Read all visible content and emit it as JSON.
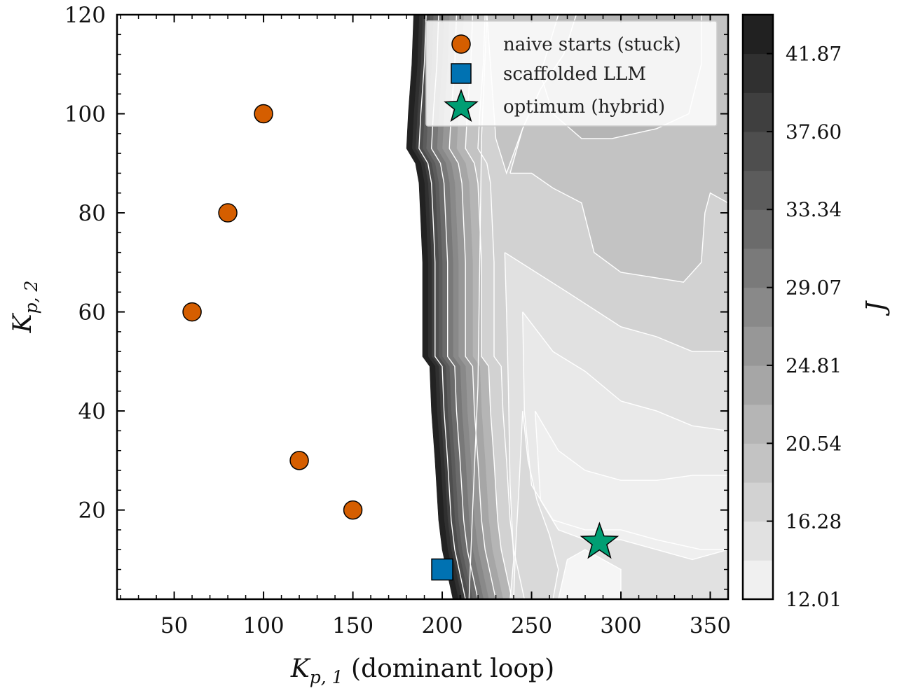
{
  "chart_data": {
    "type": "contour",
    "xlabel": {
      "symbol": "K",
      "sub": "p, 1",
      "suffix": " (dominant loop)"
    },
    "ylabel": {
      "symbol": "K",
      "sub": "p, 2"
    },
    "colorbar_label": "J",
    "xlim": [
      18,
      360
    ],
    "ylim": [
      2,
      120
    ],
    "x_ticks": [
      50,
      100,
      150,
      200,
      250,
      300,
      350
    ],
    "y_ticks": [
      20,
      40,
      60,
      80,
      100,
      120
    ],
    "colorbar": {
      "min": 12.01,
      "max": 44.0,
      "tick_values": [
        12.01,
        16.28,
        20.54,
        24.81,
        29.07,
        33.34,
        37.6,
        41.87
      ],
      "tick_labels": [
        "12.01",
        "16.28",
        "20.54",
        "24.81",
        "29.07",
        "33.34",
        "37.60",
        "41.87"
      ],
      "levels": 15
    },
    "contour_boundary": [
      [
        184,
        120
      ],
      [
        183,
        110
      ],
      [
        181,
        100
      ],
      [
        180,
        93
      ],
      [
        185,
        90
      ],
      [
        187,
        86
      ],
      [
        188,
        78
      ],
      [
        189,
        70
      ],
      [
        189,
        60
      ],
      [
        189,
        51
      ],
      [
        193,
        49
      ],
      [
        194,
        40
      ],
      [
        196,
        30
      ],
      [
        198,
        18
      ],
      [
        200,
        12
      ],
      [
        206,
        2
      ]
    ],
    "contour_bands": [
      {
        "value": 42.9,
        "dx": 3
      },
      {
        "value": 40.8,
        "dx": 5
      },
      {
        "value": 38.7,
        "dx": 7
      },
      {
        "value": 36.5,
        "dx": 9
      },
      {
        "value": 34.4,
        "dx": 11
      },
      {
        "value": 32.3,
        "dx": 14
      },
      {
        "value": 30.2,
        "dx": 17
      },
      {
        "value": 28.0,
        "dx": 20
      },
      {
        "value": 25.9,
        "dx": 24
      },
      {
        "value": 23.8,
        "dx": 28
      },
      {
        "value": 21.6,
        "dx": 33
      }
    ],
    "plateau": {
      "value": 19.5,
      "dx": 40
    },
    "contour_regions": [
      {
        "value": 17.4,
        "points": [
          [
            225,
            120
          ],
          [
            360,
            120
          ],
          [
            360,
            2
          ],
          [
            215,
            2
          ],
          [
            217,
            20
          ],
          [
            220,
            45
          ],
          [
            221,
            70
          ],
          [
            222,
            95
          ]
        ]
      },
      {
        "value": 19.5,
        "points": [
          [
            225,
            120
          ],
          [
            275,
            120
          ],
          [
            268,
            112
          ],
          [
            255,
            105
          ],
          [
            245,
            97
          ],
          [
            236,
            88
          ],
          [
            230,
            95
          ]
        ]
      },
      {
        "value": 19.5,
        "points": [
          [
            238,
            88
          ],
          [
            250,
            88
          ],
          [
            262,
            85
          ],
          [
            278,
            82
          ],
          [
            285,
            72
          ],
          [
            300,
            68
          ],
          [
            335,
            66
          ],
          [
            345,
            70
          ],
          [
            347,
            80
          ],
          [
            350,
            84
          ],
          [
            360,
            82
          ],
          [
            360,
            120
          ],
          [
            275,
            120
          ],
          [
            268,
            112
          ],
          [
            255,
            105
          ],
          [
            245,
            97
          ]
        ]
      },
      {
        "value": 21.6,
        "points": [
          [
            265,
            120
          ],
          [
            345,
            120
          ],
          [
            345,
            110
          ],
          [
            338,
            100
          ],
          [
            320,
            97
          ],
          [
            295,
            95
          ],
          [
            278,
            95
          ],
          [
            262,
            100
          ],
          [
            255,
            108
          ]
        ]
      },
      {
        "value": 15.2,
        "points": [
          [
            235,
            72
          ],
          [
            270,
            64
          ],
          [
            300,
            57
          ],
          [
            320,
            55
          ],
          [
            340,
            52
          ],
          [
            360,
            52
          ],
          [
            360,
            2
          ],
          [
            238,
            2
          ],
          [
            240,
            10
          ],
          [
            238,
            25
          ],
          [
            237,
            45
          ],
          [
            236,
            60
          ]
        ]
      },
      {
        "value": 14.1,
        "points": [
          [
            245,
            60
          ],
          [
            262,
            52
          ],
          [
            280,
            48
          ],
          [
            300,
            42
          ],
          [
            320,
            40
          ],
          [
            340,
            37
          ],
          [
            360,
            36
          ],
          [
            360,
            12
          ],
          [
            345,
            12
          ],
          [
            320,
            14
          ],
          [
            300,
            16
          ],
          [
            280,
            16
          ],
          [
            262,
            18
          ],
          [
            250,
            25
          ],
          [
            246,
            40
          ]
        ]
      },
      {
        "value": 16.3,
        "points": [
          [
            240,
            2
          ],
          [
            262,
            2
          ],
          [
            265,
            8
          ],
          [
            260,
            15
          ],
          [
            253,
            22
          ],
          [
            248,
            30
          ],
          [
            245,
            40
          ],
          [
            243,
            25
          ],
          [
            241,
            12
          ]
        ]
      },
      {
        "value": 13.1,
        "points": [
          [
            252,
            40
          ],
          [
            265,
            32
          ],
          [
            280,
            28
          ],
          [
            300,
            26
          ],
          [
            320,
            26
          ],
          [
            340,
            27
          ],
          [
            360,
            27
          ],
          [
            360,
            12
          ],
          [
            340,
            10
          ],
          [
            320,
            12
          ],
          [
            300,
            14
          ],
          [
            280,
            14
          ],
          [
            265,
            16
          ],
          [
            255,
            22
          ]
        ]
      },
      {
        "value": 12.3,
        "points": [
          [
            265,
            2
          ],
          [
            300,
            2
          ],
          [
            300,
            8
          ],
          [
            290,
            10
          ],
          [
            280,
            12
          ],
          [
            270,
            10
          ]
        ]
      }
    ],
    "series": [
      {
        "name": "naive starts (stuck)",
        "marker": "circle",
        "color": "#d55e00",
        "points": [
          [
            100,
            100
          ],
          [
            80,
            80
          ],
          [
            60,
            60
          ],
          [
            120,
            30
          ],
          [
            150,
            20
          ]
        ]
      },
      {
        "name": "scaffolded LLM",
        "marker": "square",
        "color": "#0072b2",
        "points": [
          [
            200,
            8
          ]
        ]
      },
      {
        "name": "optimum (hybrid)",
        "marker": "star",
        "color": "#009e73",
        "points": [
          [
            288,
            13.5
          ]
        ]
      }
    ],
    "legend_position": "upper right",
    "colormap": "Greys"
  }
}
